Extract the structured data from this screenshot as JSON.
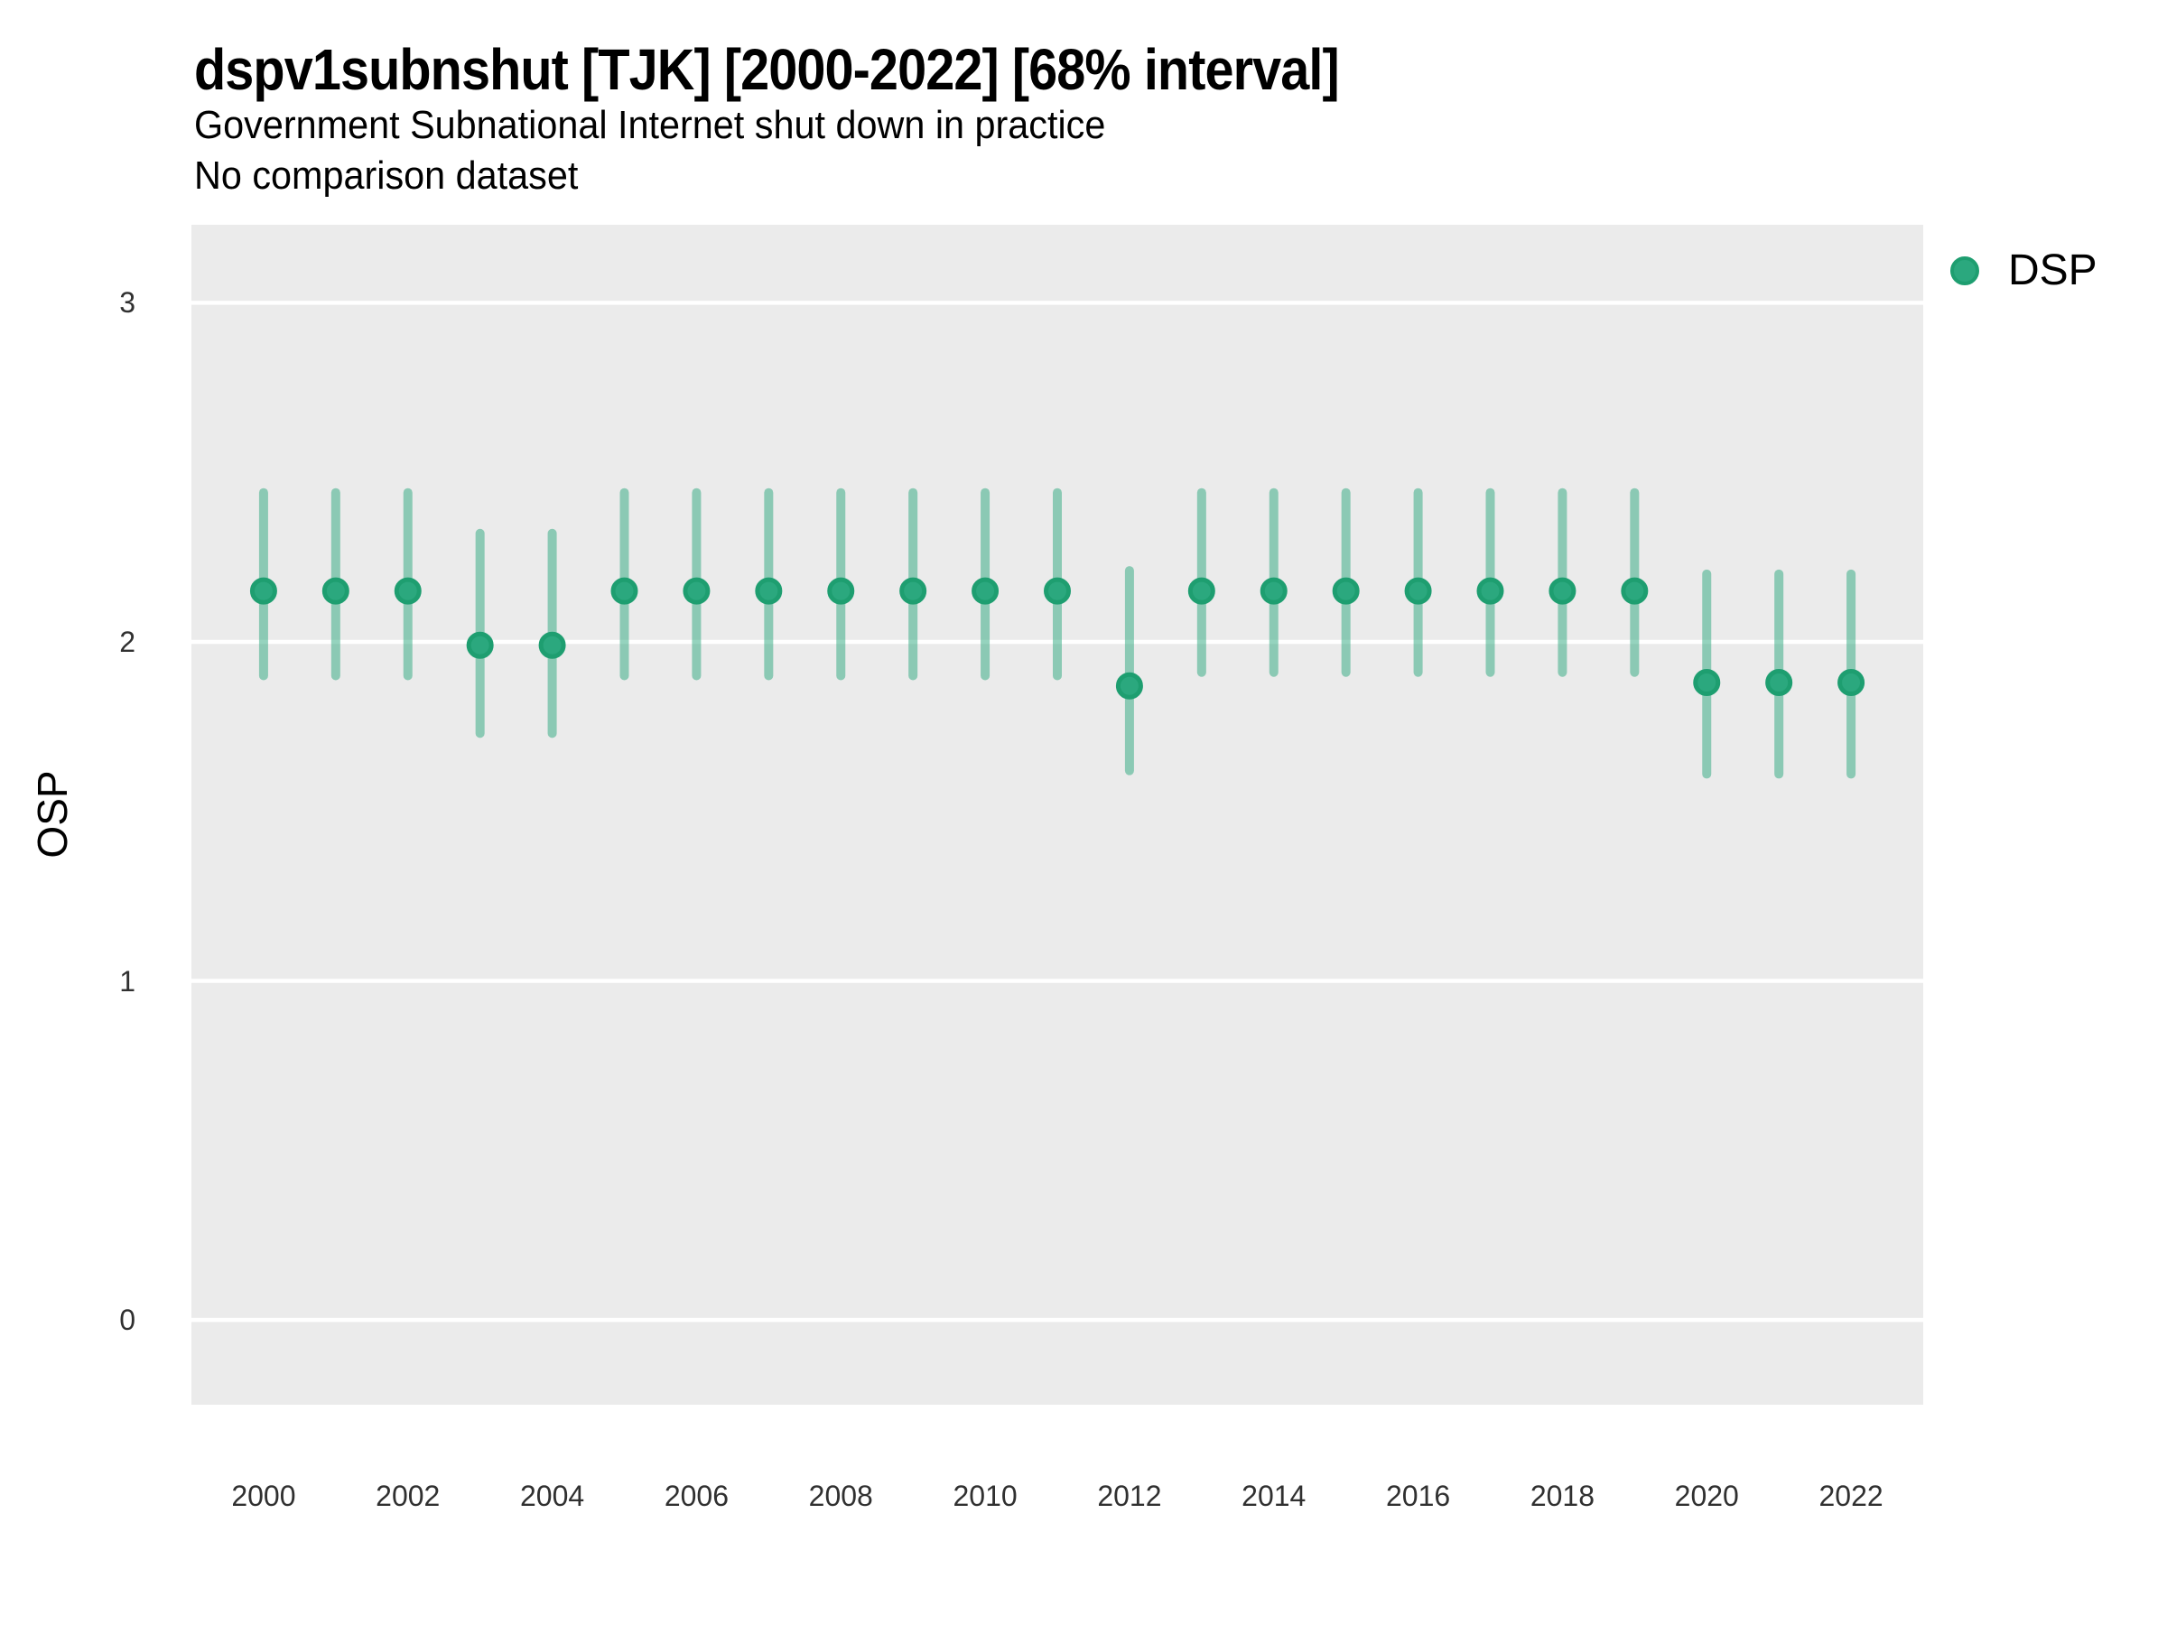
{
  "chart_data": {
    "type": "pointrange",
    "title": "dspv1subnshut [TJK] [2000-2022] [68% interval]",
    "subtitle": "Government Subnational Internet shut down in practice",
    "subtitle2": "No comparison dataset",
    "xlabel": "",
    "ylabel": "OSP",
    "legend": {
      "label": "DSP",
      "position": "right"
    },
    "x": [
      2000,
      2001,
      2002,
      2003,
      2004,
      2005,
      2006,
      2007,
      2008,
      2009,
      2010,
      2011,
      2012,
      2013,
      2014,
      2015,
      2016,
      2017,
      2018,
      2019,
      2020,
      2021,
      2022
    ],
    "series": [
      {
        "name": "DSP",
        "values": [
          2.15,
          2.15,
          2.15,
          1.99,
          1.99,
          2.15,
          2.15,
          2.15,
          2.15,
          2.15,
          2.15,
          2.15,
          1.87,
          2.15,
          2.15,
          2.15,
          2.15,
          2.15,
          2.15,
          2.15,
          1.88,
          1.88,
          1.88
        ],
        "lower_68": [
          1.9,
          1.9,
          1.9,
          1.73,
          1.73,
          1.9,
          1.9,
          1.9,
          1.9,
          1.9,
          1.9,
          1.9,
          1.62,
          1.91,
          1.91,
          1.91,
          1.91,
          1.91,
          1.91,
          1.91,
          1.61,
          1.61,
          1.61
        ],
        "upper_68": [
          2.44,
          2.44,
          2.44,
          2.32,
          2.32,
          2.44,
          2.44,
          2.44,
          2.44,
          2.44,
          2.44,
          2.44,
          2.21,
          2.44,
          2.44,
          2.44,
          2.44,
          2.44,
          2.44,
          2.44,
          2.2,
          2.2,
          2.2
        ]
      }
    ],
    "xticks": [
      2000,
      2002,
      2004,
      2006,
      2008,
      2010,
      2012,
      2014,
      2016,
      2018,
      2020,
      2022
    ],
    "yticks": [
      0,
      1,
      2,
      3
    ],
    "xlim": [
      1999.0,
      2023.0
    ],
    "ylim": [
      -0.25,
      3.23
    ],
    "grid": "major-horizontal-white",
    "legend_position": "right",
    "colors": {
      "panel_bg": "#EBEBEB",
      "gridline": "#FFFFFF",
      "point_fill": "#2BA87E",
      "point_stroke": "#1E9E70",
      "interval": "rgba(43,168,126,0.5)",
      "text": "#000000",
      "tick_text": "#303030"
    }
  }
}
